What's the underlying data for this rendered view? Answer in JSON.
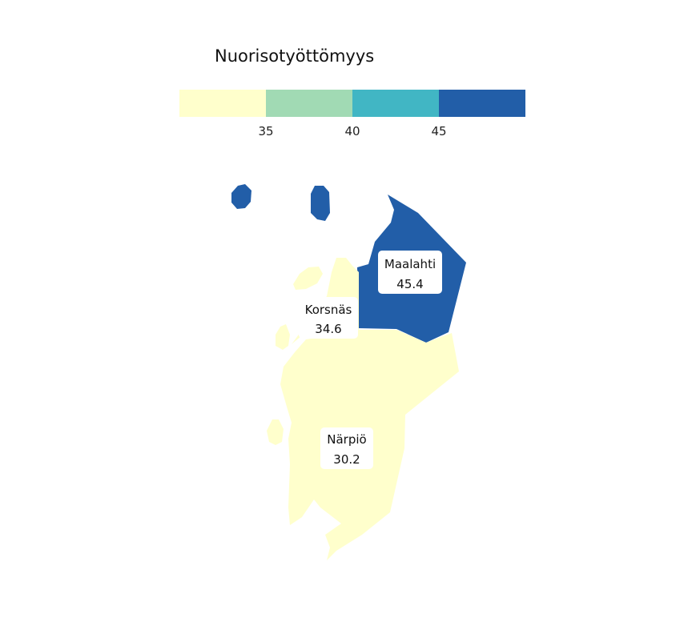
{
  "legend": {
    "title": "Nuorisotyöttömyys",
    "breaks": [
      "35",
      "40",
      "45"
    ],
    "colors": [
      "#ffffcc",
      "#a1dab4",
      "#41b6c4",
      "#225ea8"
    ]
  },
  "regions": [
    {
      "name": "Maalahti",
      "value": "45.4",
      "color": "#225ea8"
    },
    {
      "name": "Korsnäs",
      "value": "34.6",
      "color": "#ffffcc"
    },
    {
      "name": "Närpiö",
      "value": "30.2",
      "color": "#ffffcc"
    }
  ]
}
